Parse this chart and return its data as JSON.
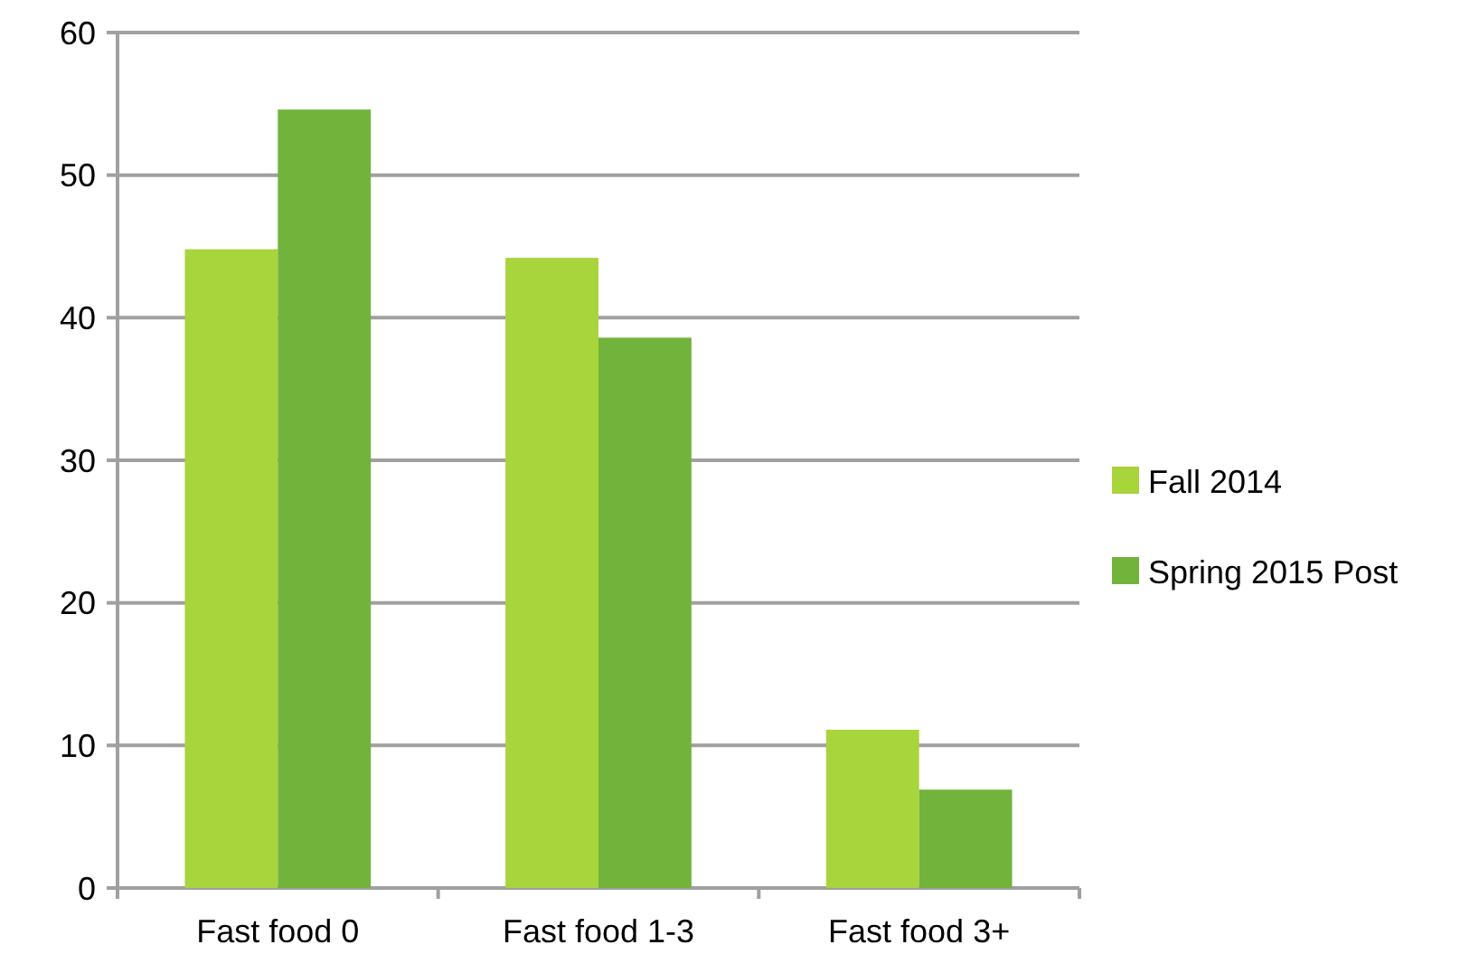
{
  "chart_data": {
    "type": "bar",
    "categories": [
      "Fast food 0",
      "Fast food 1-3",
      "Fast food 3+"
    ],
    "series": [
      {
        "name": "Fall 2014",
        "color": "#a8d43c",
        "values": [
          44.8,
          44.2,
          11.1
        ]
      },
      {
        "name": "Spring 2015 Post",
        "color": "#72b33c",
        "values": [
          54.6,
          38.6,
          6.9
        ]
      }
    ],
    "ylim": [
      0,
      60
    ],
    "yticks": [
      0,
      10,
      20,
      30,
      40,
      50,
      60
    ],
    "grid": "y",
    "legend": "right"
  }
}
